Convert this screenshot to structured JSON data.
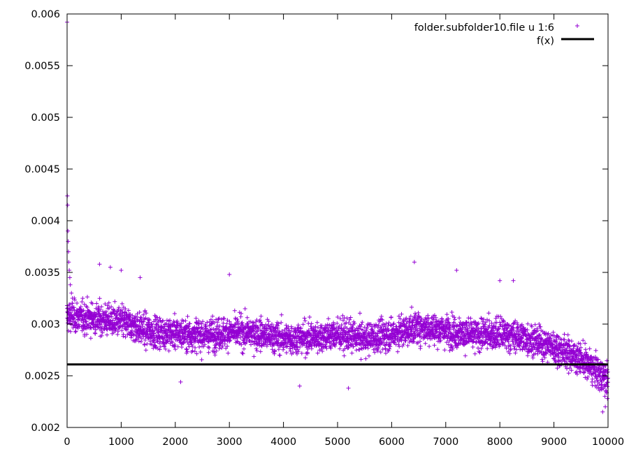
{
  "chart_data": {
    "type": "scatter",
    "title": "",
    "xlabel": "",
    "ylabel": "",
    "xlim": [
      0,
      10000
    ],
    "ylim": [
      0.002,
      0.006
    ],
    "xticks": [
      0,
      1000,
      2000,
      3000,
      4000,
      5000,
      6000,
      7000,
      8000,
      9000,
      10000
    ],
    "yticks": [
      0.002,
      0.0025,
      0.003,
      0.0035,
      0.004,
      0.0045,
      0.005,
      0.0055,
      0.006
    ],
    "xtick_labels": [
      "0",
      "1000",
      "2000",
      "3000",
      "4000",
      "5000",
      "6000",
      "7000",
      "8000",
      "9000",
      "10000"
    ],
    "ytick_labels": [
      "0.002",
      "0.0025",
      "0.003",
      "0.0035",
      "0.004",
      "0.0045",
      "0.005",
      "0.0055",
      "0.006"
    ],
    "grid": false,
    "legend_position": "top-right",
    "series": [
      {
        "name": "folder.subfolder10.file u 1:6",
        "kind": "points",
        "marker": "plus",
        "color": "#9400d3",
        "points": [
          [
            0,
            0.00592
          ],
          [
            5,
            0.00424
          ],
          [
            10,
            0.00415
          ],
          [
            15,
            0.0039
          ],
          [
            20,
            0.0038
          ],
          [
            25,
            0.0037
          ],
          [
            30,
            0.0036
          ],
          [
            40,
            0.00352
          ],
          [
            50,
            0.00345
          ],
          [
            60,
            0.00338
          ],
          [
            80,
            0.0033
          ],
          [
            100,
            0.00325
          ],
          [
            600,
            0.00358
          ],
          [
            800,
            0.00355
          ],
          [
            1000,
            0.00352
          ],
          [
            1350,
            0.00345
          ],
          [
            3000,
            0.00348
          ],
          [
            6420,
            0.0036
          ],
          [
            7200,
            0.00352
          ],
          [
            8000,
            0.00342
          ],
          [
            8250,
            0.00342
          ],
          [
            2100,
            0.00244
          ],
          [
            4300,
            0.0024
          ],
          [
            5200,
            0.00238
          ],
          [
            9900,
            0.00215
          ],
          [
            9950,
            0.0022
          ],
          [
            9990,
            0.00228
          ]
        ],
        "profile": [
          [
            0,
            0.00308
          ],
          [
            500,
            0.00305
          ],
          [
            1000,
            0.00302
          ],
          [
            1500,
            0.00293
          ],
          [
            2000,
            0.00291
          ],
          [
            2500,
            0.00289
          ],
          [
            3000,
            0.00292
          ],
          [
            3500,
            0.00291
          ],
          [
            4000,
            0.00286
          ],
          [
            4500,
            0.00287
          ],
          [
            5000,
            0.0029
          ],
          [
            5500,
            0.00286
          ],
          [
            6000,
            0.0029
          ],
          [
            6500,
            0.00297
          ],
          [
            7000,
            0.00294
          ],
          [
            7500,
            0.00289
          ],
          [
            8000,
            0.00291
          ],
          [
            8500,
            0.00286
          ],
          [
            9000,
            0.00278
          ],
          [
            9500,
            0.00266
          ],
          [
            10000,
            0.00245
          ]
        ],
        "spread": 0.00014,
        "count": 4000
      },
      {
        "name": "f(x)",
        "kind": "line",
        "color": "#000000",
        "constant": 0.00261
      }
    ]
  }
}
